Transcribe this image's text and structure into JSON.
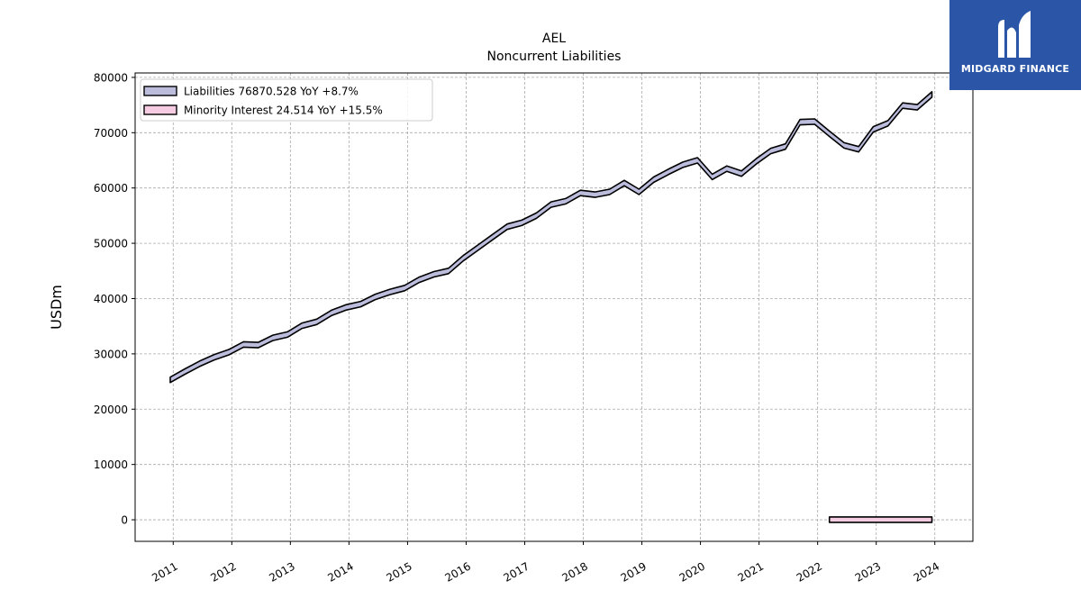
{
  "chart_data": {
    "type": "area",
    "title": "AEL",
    "subtitle": "Noncurrent  Liabilities",
    "ylabel": "USDm",
    "xlabel": "",
    "ylim": [
      -3900,
      80800
    ],
    "xlim": [
      2010.35,
      2024.65
    ],
    "yticks": [
      0,
      10000,
      20000,
      30000,
      40000,
      50000,
      60000,
      70000,
      80000
    ],
    "xticks": [
      "2011",
      "2012",
      "2013",
      "2014",
      "2015",
      "2016",
      "2017",
      "2018",
      "2019",
      "2020",
      "2021",
      "2022",
      "2023",
      "2024"
    ],
    "grid": true,
    "legend_position": "top-left",
    "series": [
      {
        "name": "Liabilities  76870.528 YoY +8.7%",
        "color": "#bcbcdc",
        "edge": "#000000",
        "x": [
          2010.95,
          2011.2,
          2011.45,
          2011.7,
          2011.95,
          2012.2,
          2012.45,
          2012.7,
          2012.95,
          2013.2,
          2013.45,
          2013.7,
          2013.95,
          2014.2,
          2014.45,
          2014.7,
          2014.95,
          2015.2,
          2015.45,
          2015.7,
          2015.95,
          2016.2,
          2016.45,
          2016.7,
          2016.95,
          2017.2,
          2017.45,
          2017.7,
          2017.95,
          2018.2,
          2018.45,
          2018.7,
          2018.95,
          2019.2,
          2019.45,
          2019.7,
          2019.95,
          2020.2,
          2020.45,
          2020.7,
          2020.95,
          2021.2,
          2021.45,
          2021.7,
          2021.95,
          2022.2,
          2022.45,
          2022.7,
          2022.95,
          2023.2,
          2023.45,
          2023.7,
          2023.95
        ],
        "values": [
          25300,
          26800,
          28200,
          29400,
          30300,
          31700,
          31600,
          32900,
          33500,
          35100,
          35800,
          37400,
          38400,
          39000,
          40300,
          41200,
          41900,
          43400,
          44400,
          45000,
          47300,
          49200,
          51100,
          53000,
          53700,
          55000,
          57000,
          57600,
          59100,
          58800,
          59300,
          60900,
          59300,
          61500,
          62900,
          64200,
          65000,
          62000,
          63500,
          62600,
          64800,
          66700,
          67500,
          71900,
          72000,
          69800,
          67700,
          67000,
          70600,
          71700,
          74900,
          74600,
          76900
        ]
      },
      {
        "name": "Minority Interest  24.514 YoY +15.5%",
        "color": "#f6cce2",
        "edge": "#000000",
        "x": [
          2022.2,
          2022.45,
          2022.7,
          2022.95,
          2023.2,
          2023.45,
          2023.7,
          2023.95
        ],
        "values": [
          21,
          21.2,
          21.2,
          21.2,
          22,
          23,
          24,
          24.5
        ]
      }
    ]
  },
  "logo": {
    "text": "MIDGARD FINANCE",
    "background": "#2b56a8"
  }
}
